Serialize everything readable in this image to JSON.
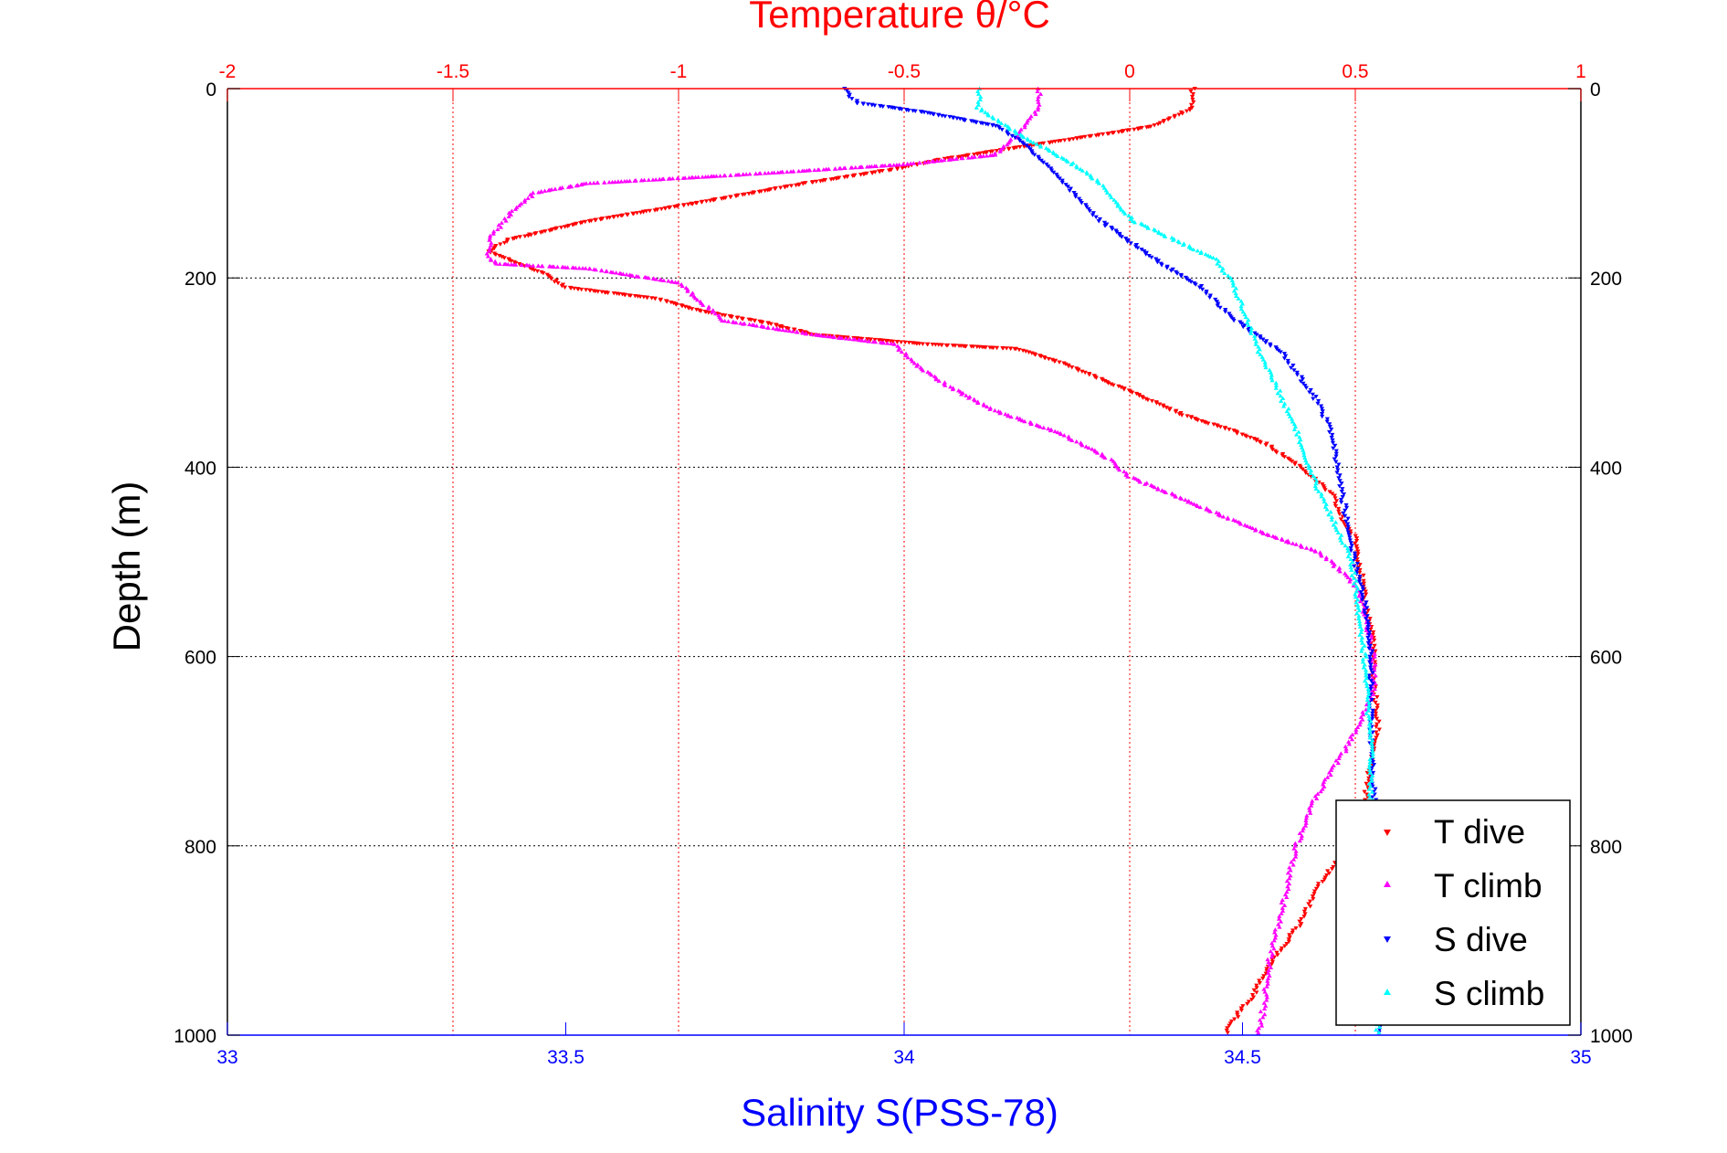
{
  "chart_data": {
    "type": "scatter",
    "title": "Temperature θ/°C",
    "xlabel": "Salinity S(PSS-78)",
    "ylabel": "Depth (m)",
    "temperature_axis": {
      "label": "Temperature θ/°C",
      "range": [
        -2,
        1
      ],
      "ticks": [
        "-2",
        "-1.5",
        "-1",
        "-0.5",
        "0",
        "0.5",
        "1"
      ],
      "color": "#ff0000"
    },
    "salinity_axis": {
      "label": "Salinity S(PSS-78)",
      "range": [
        33,
        35
      ],
      "ticks": [
        "33",
        "33.5",
        "34",
        "34.5",
        "35"
      ],
      "color": "#0000ff"
    },
    "depth_axis": {
      "label": "Depth (m)",
      "range": [
        0,
        1000
      ],
      "reversed": true,
      "ticks": [
        "0",
        "200",
        "400",
        "600",
        "800",
        "1000"
      ]
    },
    "grid": true,
    "legend_position": "bottom-right",
    "series": [
      {
        "name": "T dive",
        "axis": "temperature",
        "color": "#ff0000",
        "marker": "triangle-down",
        "points": [
          [
            0.14,
            0
          ],
          [
            0.14,
            20
          ],
          [
            0.05,
            40
          ],
          [
            -0.15,
            55
          ],
          [
            -0.42,
            75
          ],
          [
            -0.52,
            85
          ],
          [
            -0.72,
            100
          ],
          [
            -0.95,
            120
          ],
          [
            -1.2,
            140
          ],
          [
            -1.38,
            160
          ],
          [
            -1.42,
            172
          ],
          [
            -1.38,
            180
          ],
          [
            -1.3,
            195
          ],
          [
            -1.25,
            210
          ],
          [
            -1.05,
            222
          ],
          [
            -0.95,
            235
          ],
          [
            -0.8,
            248
          ],
          [
            -0.7,
            260
          ],
          [
            -0.45,
            270
          ],
          [
            -0.25,
            275
          ],
          [
            -0.15,
            290
          ],
          [
            -0.05,
            310
          ],
          [
            0.05,
            330
          ],
          [
            0.12,
            345
          ],
          [
            0.22,
            360
          ],
          [
            0.3,
            375
          ],
          [
            0.38,
            400
          ],
          [
            0.45,
            430
          ],
          [
            0.47,
            455
          ],
          [
            0.5,
            475
          ],
          [
            0.51,
            500
          ],
          [
            0.52,
            540
          ],
          [
            0.54,
            580
          ],
          [
            0.54,
            620
          ],
          [
            0.55,
            680
          ],
          [
            0.53,
            720
          ],
          [
            0.52,
            760
          ],
          [
            0.49,
            800
          ],
          [
            0.42,
            840
          ],
          [
            0.38,
            880
          ],
          [
            0.32,
            920
          ],
          [
            0.27,
            960
          ],
          [
            0.22,
            990
          ],
          [
            0.21,
            1000
          ]
        ]
      },
      {
        "name": "T climb",
        "axis": "temperature",
        "color": "#ff00ff",
        "marker": "triangle-up",
        "points": [
          [
            -0.2,
            0
          ],
          [
            -0.2,
            20
          ],
          [
            -0.25,
            50
          ],
          [
            -0.3,
            70
          ],
          [
            -0.5,
            80
          ],
          [
            -0.9,
            92
          ],
          [
            -1.2,
            100
          ],
          [
            -1.32,
            110
          ],
          [
            -1.38,
            135
          ],
          [
            -1.42,
            160
          ],
          [
            -1.42,
            180
          ],
          [
            -1.4,
            185
          ],
          [
            -1.2,
            190
          ],
          [
            -1.0,
            205
          ],
          [
            -0.95,
            225
          ],
          [
            -0.9,
            245
          ],
          [
            -0.7,
            260
          ],
          [
            -0.52,
            270
          ],
          [
            -0.48,
            290
          ],
          [
            -0.4,
            315
          ],
          [
            -0.3,
            340
          ],
          [
            -0.15,
            365
          ],
          [
            -0.05,
            390
          ],
          [
            0.0,
            410
          ],
          [
            0.1,
            430
          ],
          [
            0.2,
            450
          ],
          [
            0.3,
            470
          ],
          [
            0.42,
            490
          ],
          [
            0.47,
            510
          ],
          [
            0.5,
            525
          ],
          [
            0.52,
            550
          ],
          [
            0.54,
            600
          ],
          [
            0.54,
            640
          ],
          [
            0.5,
            680
          ],
          [
            0.45,
            720
          ],
          [
            0.4,
            760
          ],
          [
            0.37,
            800
          ],
          [
            0.35,
            840
          ],
          [
            0.33,
            880
          ],
          [
            0.31,
            920
          ],
          [
            0.3,
            960
          ],
          [
            0.29,
            990
          ],
          [
            0.28,
            1000
          ]
        ]
      },
      {
        "name": "S dive",
        "axis": "salinity",
        "color": "#0000ff",
        "marker": "triangle-down",
        "points": [
          [
            33.91,
            0
          ],
          [
            33.93,
            15
          ],
          [
            34.03,
            25
          ],
          [
            34.14,
            40
          ],
          [
            34.18,
            60
          ],
          [
            34.21,
            80
          ],
          [
            34.25,
            110
          ],
          [
            34.29,
            140
          ],
          [
            34.33,
            160
          ],
          [
            34.38,
            185
          ],
          [
            34.44,
            210
          ],
          [
            34.48,
            240
          ],
          [
            34.52,
            260
          ],
          [
            34.56,
            280
          ],
          [
            34.58,
            300
          ],
          [
            34.61,
            330
          ],
          [
            34.63,
            360
          ],
          [
            34.64,
            400
          ],
          [
            34.65,
            440
          ],
          [
            34.66,
            480
          ],
          [
            34.67,
            510
          ],
          [
            34.68,
            540
          ],
          [
            34.69,
            600
          ],
          [
            34.69,
            700
          ],
          [
            34.7,
            800
          ],
          [
            34.7,
            900
          ],
          [
            34.7,
            1000
          ]
        ]
      },
      {
        "name": "S climb",
        "axis": "salinity",
        "color": "#00ffff",
        "marker": "triangle-up",
        "points": [
          [
            34.11,
            0
          ],
          [
            34.11,
            20
          ],
          [
            34.15,
            40
          ],
          [
            34.2,
            60
          ],
          [
            34.25,
            80
          ],
          [
            34.29,
            100
          ],
          [
            34.31,
            120
          ],
          [
            34.34,
            140
          ],
          [
            34.4,
            160
          ],
          [
            34.46,
            180
          ],
          [
            34.48,
            200
          ],
          [
            34.5,
            230
          ],
          [
            34.51,
            250
          ],
          [
            34.52,
            270
          ],
          [
            34.54,
            300
          ],
          [
            34.56,
            330
          ],
          [
            34.58,
            360
          ],
          [
            34.59,
            390
          ],
          [
            34.61,
            420
          ],
          [
            34.63,
            450
          ],
          [
            34.65,
            480
          ],
          [
            34.66,
            500
          ],
          [
            34.67,
            540
          ],
          [
            34.68,
            600
          ],
          [
            34.69,
            700
          ],
          [
            34.69,
            800
          ],
          [
            34.7,
            900
          ],
          [
            34.7,
            1000
          ]
        ]
      }
    ]
  }
}
